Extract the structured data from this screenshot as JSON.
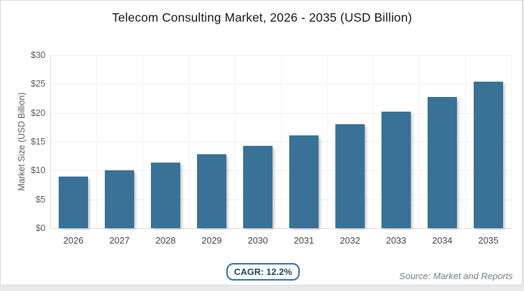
{
  "chart_data": {
    "type": "bar",
    "title": "Telecom Consulting Market, 2026 - 2035 (USD Billion)",
    "categories": [
      "2026",
      "2027",
      "2028",
      "2029",
      "2030",
      "2031",
      "2032",
      "2033",
      "2034",
      "2035"
    ],
    "values": [
      9.0,
      10.1,
      11.4,
      12.8,
      14.3,
      16.1,
      18.0,
      20.2,
      22.7,
      25.4
    ],
    "xlabel": "",
    "ylabel": "Market Size (USD Billion)",
    "ylim": [
      0,
      30
    ],
    "ytick_step": 5,
    "ytick_prefix": "$",
    "grid": true,
    "legend": false,
    "bar_color": "#3a7196"
  },
  "footer": {
    "cagr_label": "CAGR: 12.2%",
    "source": "Source: Market and Reports"
  }
}
